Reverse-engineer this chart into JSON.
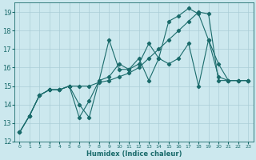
{
  "xlabel": "Humidex (Indice chaleur)",
  "xlim": [
    -0.5,
    23.5
  ],
  "ylim": [
    12,
    19.5
  ],
  "yticks": [
    12,
    13,
    14,
    15,
    16,
    17,
    18,
    19
  ],
  "xticks": [
    0,
    1,
    2,
    3,
    4,
    5,
    6,
    7,
    8,
    9,
    10,
    11,
    12,
    13,
    14,
    15,
    16,
    17,
    18,
    19,
    20,
    21,
    22,
    23
  ],
  "bg_color": "#cce8ee",
  "grid_color": "#aacdd6",
  "line_color": "#1a6b6b",
  "lines": [
    {
      "x": [
        0,
        1,
        2,
        3,
        4,
        5,
        6,
        7,
        8,
        9,
        10,
        11,
        12,
        13,
        14,
        15,
        16,
        17,
        18,
        19,
        20,
        21,
        22,
        23
      ],
      "y": [
        12.5,
        13.4,
        14.5,
        14.8,
        14.8,
        15.0,
        15.0,
        15.0,
        15.2,
        15.3,
        15.5,
        15.7,
        16.0,
        16.5,
        17.0,
        17.5,
        18.0,
        18.5,
        19.0,
        18.9,
        15.3,
        15.3,
        15.3,
        15.3
      ]
    },
    {
      "x": [
        0,
        1,
        2,
        3,
        4,
        5,
        6,
        7,
        8,
        9,
        10,
        11,
        12,
        13,
        14,
        15,
        16,
        17,
        18,
        19,
        20,
        21,
        22,
        23
      ],
      "y": [
        12.5,
        13.4,
        14.5,
        14.8,
        14.8,
        15.0,
        13.3,
        14.2,
        15.3,
        17.5,
        15.9,
        15.9,
        16.2,
        17.3,
        16.5,
        18.5,
        18.8,
        19.2,
        18.9,
        17.5,
        15.5,
        15.3,
        15.3,
        15.3
      ]
    },
    {
      "x": [
        0,
        1,
        2,
        3,
        4,
        5,
        6,
        7,
        8,
        9,
        10,
        11,
        12,
        13,
        14,
        15,
        16,
        17,
        18,
        19,
        20,
        21,
        22,
        23
      ],
      "y": [
        12.5,
        13.4,
        14.5,
        14.8,
        14.8,
        15.0,
        14.0,
        13.3,
        15.3,
        15.5,
        16.2,
        15.9,
        16.5,
        15.3,
        16.5,
        16.2,
        16.5,
        17.3,
        15.0,
        17.5,
        16.2,
        15.3,
        15.3,
        15.3
      ]
    }
  ]
}
